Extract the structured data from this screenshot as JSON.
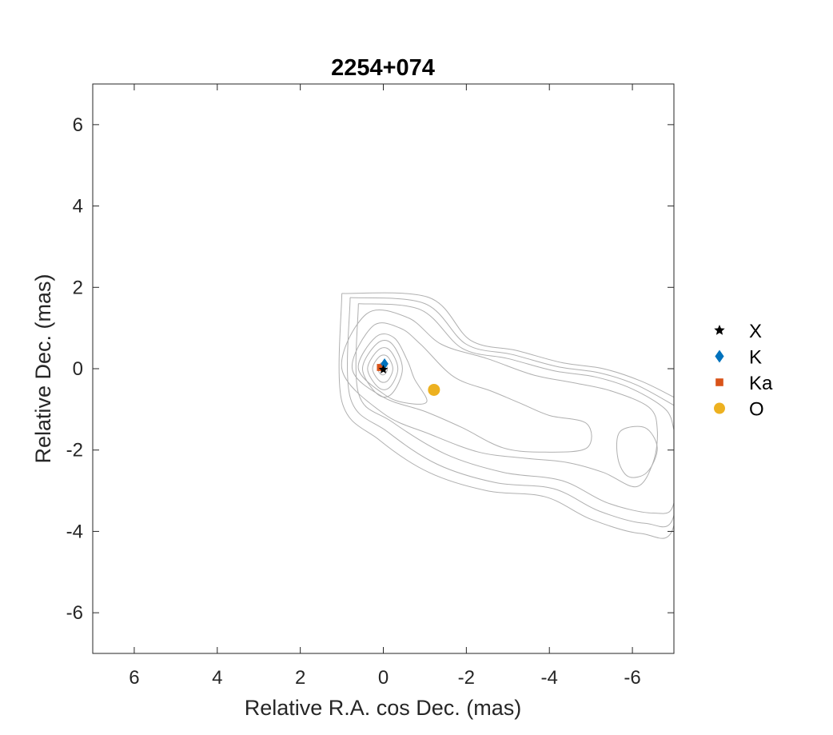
{
  "chart_data": {
    "type": "scatter",
    "title": "2254+074",
    "xlabel": "Relative R.A. cos Dec. (mas)",
    "ylabel": "Relative Dec. (mas)",
    "xlim": [
      7,
      -7
    ],
    "ylim": [
      -7,
      7
    ],
    "x_reversed": true,
    "x_ticks": [
      6,
      4,
      2,
      0,
      -2,
      -4,
      -6
    ],
    "y_ticks": [
      -6,
      -4,
      -2,
      0,
      2,
      4,
      6
    ],
    "x_tick_labels": [
      "6",
      "4",
      "2",
      "0",
      "-2",
      "-4",
      "-6"
    ],
    "y_tick_labels": [
      "-6",
      "-4",
      "-2",
      "0",
      "2",
      "4",
      "6"
    ],
    "grid": false,
    "legend_position": "right",
    "series": [
      {
        "name": "X",
        "marker": "star",
        "color": "#000000",
        "points": [
          [
            0.0,
            -0.02
          ]
        ]
      },
      {
        "name": "K",
        "marker": "diamond",
        "color": "#0072BD",
        "points": [
          [
            -0.03,
            0.12
          ]
        ]
      },
      {
        "name": "Ka",
        "marker": "square",
        "color": "#D95319",
        "points": [
          [
            0.07,
            0.03
          ]
        ]
      },
      {
        "name": "O",
        "marker": "circle",
        "color": "#EDB120",
        "points": [
          [
            -1.22,
            -0.52
          ]
        ]
      }
    ],
    "contour_color": "#b0b0b0",
    "contours": [
      [
        [
          0.07,
          0.13
        ],
        [
          -0.03,
          0.14
        ],
        [
          -0.1,
          0.0
        ],
        [
          -0.03,
          -0.14
        ],
        [
          0.07,
          -0.13
        ],
        [
          0.13,
          0.0
        ]
      ],
      [
        [
          0.09,
          0.3
        ],
        [
          -0.1,
          0.3
        ],
        [
          -0.23,
          0.0
        ],
        [
          -0.1,
          -0.3
        ],
        [
          0.09,
          -0.3
        ],
        [
          0.26,
          0.0
        ]
      ],
      [
        [
          0.12,
          0.46
        ],
        [
          -0.15,
          0.46
        ],
        [
          -0.35,
          0.0
        ],
        [
          -0.15,
          -0.46
        ],
        [
          0.12,
          -0.46
        ],
        [
          0.38,
          0.0
        ]
      ],
      [
        [
          0.15,
          0.62
        ],
        [
          -0.2,
          0.62
        ],
        [
          -0.46,
          0.0
        ],
        [
          -0.2,
          -0.62
        ],
        [
          0.15,
          -0.62
        ],
        [
          0.5,
          0.0
        ]
      ],
      [
        [
          0.18,
          0.78
        ],
        [
          -0.26,
          0.76
        ],
        [
          -0.58,
          0.2
        ],
        [
          -0.75,
          -0.25
        ],
        [
          -1.05,
          -0.8
        ],
        [
          -0.6,
          -0.85
        ],
        [
          -0.05,
          -0.65
        ],
        [
          0.6,
          0.0
        ]
      ],
      [
        [
          0.25,
          1.05
        ],
        [
          -0.4,
          1.0
        ],
        [
          -0.9,
          0.6
        ],
        [
          -1.7,
          -0.2
        ],
        [
          -2.6,
          -0.55
        ],
        [
          -3.3,
          -0.85
        ],
        [
          -4.0,
          -1.15
        ],
        [
          -4.9,
          -1.35
        ],
        [
          -4.9,
          -1.95
        ],
        [
          -3.9,
          -2.05
        ],
        [
          -2.9,
          -1.95
        ],
        [
          -1.9,
          -1.45
        ],
        [
          -1.0,
          -1.05
        ],
        [
          0.0,
          -0.7
        ],
        [
          0.75,
          0.0
        ]
      ],
      [
        [
          0.4,
          1.35
        ],
        [
          -0.6,
          1.25
        ],
        [
          -1.4,
          0.6
        ],
        [
          -2.5,
          0.25
        ],
        [
          -3.6,
          -0.15
        ],
        [
          -4.6,
          -0.35
        ],
        [
          -5.5,
          -0.55
        ],
        [
          -6.4,
          -0.95
        ],
        [
          -6.6,
          -1.5
        ],
        [
          -6.5,
          -2.3
        ],
        [
          -6.1,
          -2.9
        ],
        [
          -5.3,
          -2.55
        ],
        [
          -4.4,
          -2.3
        ],
        [
          -3.4,
          -2.2
        ],
        [
          -2.3,
          -2.05
        ],
        [
          -1.1,
          -1.6
        ],
        [
          0.0,
          -1.1
        ],
        [
          1.0,
          0.0
        ]
      ],
      [
        [
          0.6,
          1.6
        ],
        [
          -0.9,
          1.45
        ],
        [
          -1.9,
          0.5
        ],
        [
          -3.0,
          0.25
        ],
        [
          -4.1,
          -0.05
        ],
        [
          -5.1,
          -0.2
        ],
        [
          -6.0,
          -0.5
        ],
        [
          -6.8,
          -1.0
        ],
        [
          -7.0,
          -1.5
        ]
      ],
      [
        [
          0.8,
          1.75
        ],
        [
          -1.0,
          1.6
        ],
        [
          -2.0,
          0.6
        ],
        [
          -3.1,
          0.35
        ],
        [
          -4.2,
          0.05
        ],
        [
          -5.2,
          -0.1
        ],
        [
          -6.1,
          -0.4
        ],
        [
          -7.0,
          -0.9
        ]
      ],
      [
        [
          1.0,
          1.85
        ],
        [
          -1.1,
          1.75
        ],
        [
          -2.1,
          0.7
        ],
        [
          -3.2,
          0.45
        ],
        [
          -4.3,
          0.15
        ],
        [
          -5.3,
          0.0
        ],
        [
          -6.2,
          -0.3
        ],
        [
          -7.0,
          -0.7
        ]
      ],
      [
        [
          -5.7,
          -1.55
        ],
        [
          -6.3,
          -1.45
        ],
        [
          -6.6,
          -1.95
        ],
        [
          -6.35,
          -2.55
        ],
        [
          -5.9,
          -2.65
        ],
        [
          -5.65,
          -2.2
        ]
      ]
    ],
    "contour_tails": [
      [
        [
          -7.0,
          -1.5
        ],
        [
          -7.0,
          -3.3
        ],
        [
          -6.5,
          -3.55
        ],
        [
          -5.4,
          -3.3
        ],
        [
          -4.3,
          -2.75
        ],
        [
          -2.9,
          -2.55
        ],
        [
          -1.5,
          -2.1
        ],
        [
          -0.2,
          -1.3
        ],
        [
          0.6,
          -0.6
        ],
        [
          0.6,
          1.6
        ]
      ],
      [
        [
          -7.0,
          -0.9
        ],
        [
          -7.0,
          -3.6
        ],
        [
          -6.3,
          -3.8
        ],
        [
          -5.2,
          -3.5
        ],
        [
          -4.1,
          -2.95
        ],
        [
          -2.7,
          -2.8
        ],
        [
          -1.3,
          -2.35
        ],
        [
          -0.1,
          -1.55
        ],
        [
          0.8,
          -0.7
        ],
        [
          0.8,
          1.75
        ]
      ],
      [
        [
          -7.0,
          -0.7
        ],
        [
          -7.0,
          -3.85
        ],
        [
          -6.2,
          -4.05
        ],
        [
          -5.0,
          -3.7
        ],
        [
          -3.9,
          -3.15
        ],
        [
          -2.5,
          -3.0
        ],
        [
          -1.1,
          -2.55
        ],
        [
          0.1,
          -1.75
        ],
        [
          1.0,
          -0.8
        ],
        [
          1.0,
          1.85
        ]
      ]
    ]
  }
}
